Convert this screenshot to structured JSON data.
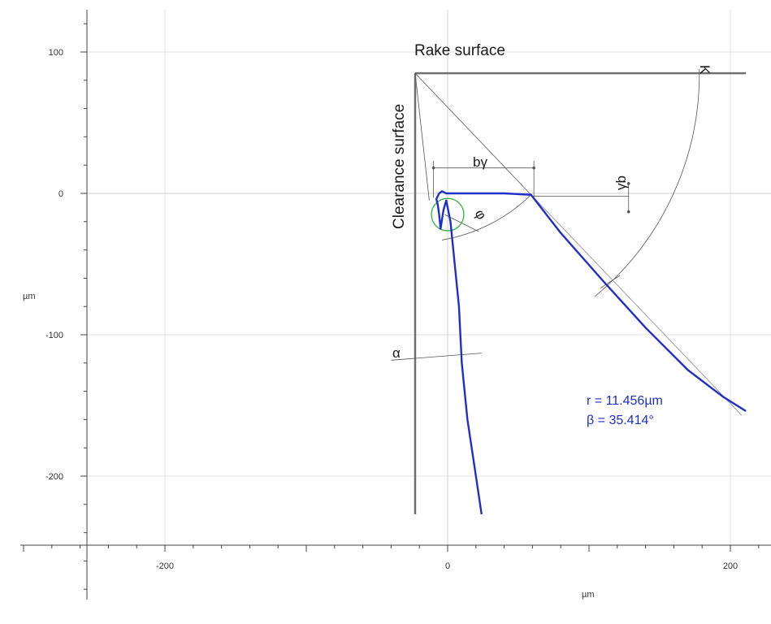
{
  "chart_data": {
    "type": "line",
    "title": "",
    "xlabel": "µm",
    "ylabel": "µm",
    "xlim": [
      -300,
      228
    ],
    "ylim": [
      -285,
      130
    ],
    "x_ticks": [
      -200,
      0,
      200
    ],
    "y_ticks": [
      100,
      0,
      -100,
      -200
    ],
    "x_tick_labels": [
      "-200",
      "0",
      "200"
    ],
    "y_tick_labels": [
      "100",
      "0",
      "-100",
      "-200"
    ],
    "grid": true,
    "series": [
      {
        "color": "#1f2fc8",
        "x": [
          24,
          20,
          17,
          14,
          12,
          10,
          9,
          8,
          6,
          4,
          2,
          -1,
          -3,
          -5,
          -6,
          -7,
          -8,
          -6,
          -4,
          -1,
          2,
          6,
          20,
          40,
          59,
          80,
          110,
          140,
          170,
          195,
          211
        ],
        "y": [
          -227,
          -200,
          -180,
          -160,
          -140,
          -120,
          -100,
          -80,
          -60,
          -40,
          -20,
          -5,
          -12,
          -25,
          -15,
          -8,
          -4,
          0,
          1.5,
          0,
          0,
          0,
          0,
          0,
          -1,
          -28,
          -62,
          -95,
          -125,
          -144,
          -154
        ]
      }
    ],
    "reference_lines": [
      {
        "name": "rake-surface",
        "x": [
          -23,
          211
        ],
        "y": [
          85,
          85
        ]
      },
      {
        "name": "clearance-surface",
        "x": [
          -23,
          -23
        ],
        "y": [
          85,
          -227
        ]
      }
    ],
    "annotations": {
      "rake_surface": "Rake surface",
      "clearance_surface": "Clearance surface",
      "b_gamma": "bγ",
      "gamma_b": "γb",
      "kappa": "K",
      "alpha": "α",
      "phi": "φ",
      "r_text": "r = 11.456µm",
      "beta_text": "β = 35.414°"
    },
    "fit_circle": {
      "center": [
        0,
        -15
      ],
      "radius": 11.456,
      "color": "#3ab54a"
    },
    "result_color": "#1f2fc8"
  }
}
